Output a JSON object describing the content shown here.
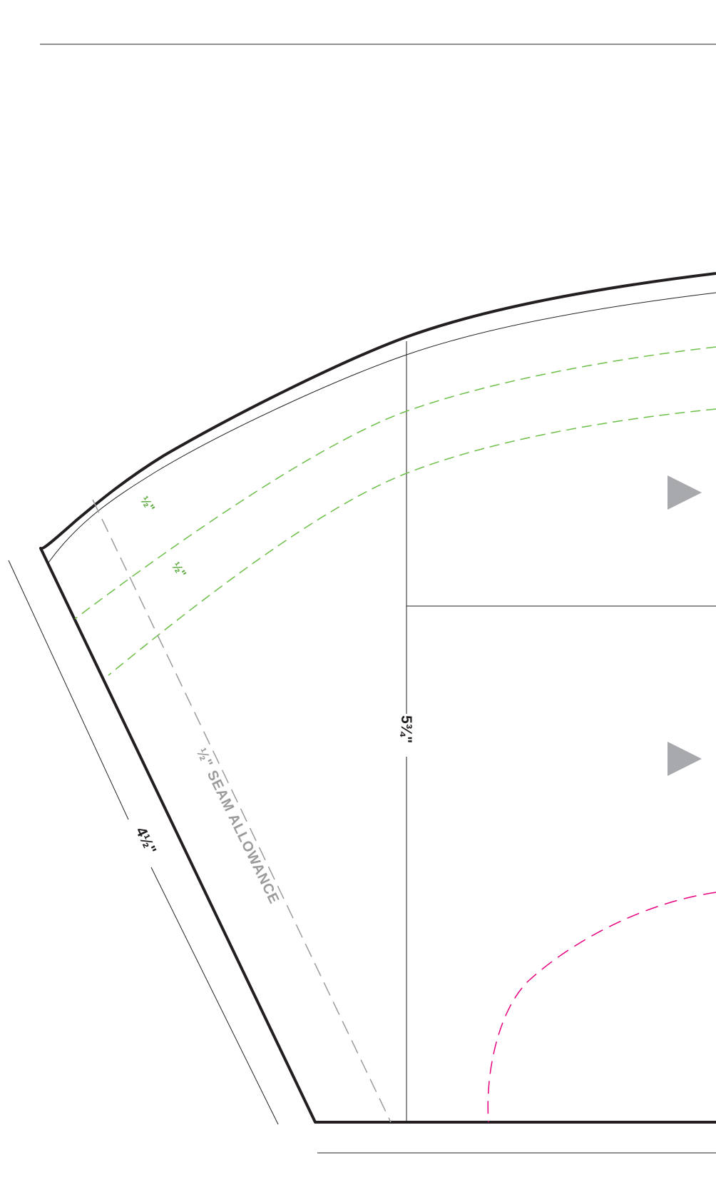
{
  "pattern": {
    "dimensions": {
      "height_label": "5¾\"",
      "side_label": "4½\""
    },
    "seam_allowance_label": "½\" SEAM ALLOWANCE",
    "guide_labels": {
      "outer": "½\"",
      "inner": "½\""
    },
    "colors": {
      "outline": "#231f20",
      "green_guides": "#6cbf47",
      "seam_line": "#9b9b9b",
      "magenta_line": "#e6007e",
      "grain_arrow": "#a7a9ac"
    },
    "icons": [
      "grainline-arrow-icon",
      "grainline-arrow-icon"
    ]
  }
}
